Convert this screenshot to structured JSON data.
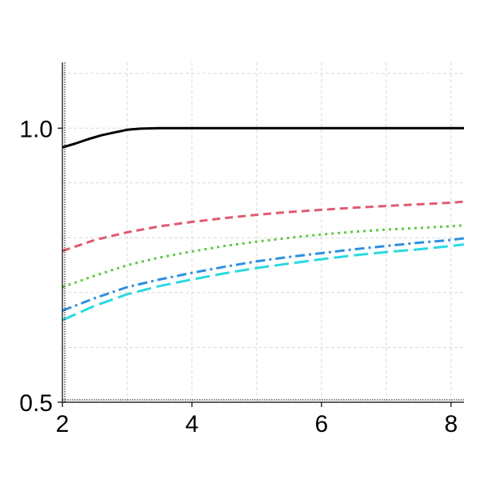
{
  "chart_data": {
    "type": "line",
    "title": "",
    "xlabel": "",
    "ylabel": "",
    "xlim": [
      2,
      8.2
    ],
    "ylim": [
      0.5,
      1.12
    ],
    "x_ticks": [
      2,
      4,
      6,
      8
    ],
    "x_tick_labels": [
      "2",
      "4",
      "6",
      "8"
    ],
    "x_minor_grid": [
      3,
      5,
      7
    ],
    "y_ticks": [
      0.5,
      1.0
    ],
    "y_tick_labels": [
      "0.5",
      "1.0"
    ],
    "y_minor_grid": [
      0.6,
      0.7,
      0.8,
      0.9,
      1.1
    ],
    "grid": true,
    "legend": "none",
    "series": [
      {
        "color": "#000000",
        "dash": "solid",
        "x": [
          2,
          2.2,
          2.4,
          2.6,
          2.8,
          3,
          3.2,
          3.5,
          4,
          5,
          6,
          7,
          8,
          8.2
        ],
        "y": [
          0.965,
          0.972,
          0.98,
          0.987,
          0.992,
          0.997,
          0.999,
          1.0,
          1.0,
          1.0,
          1.0,
          1.0,
          1.0,
          1.0
        ]
      },
      {
        "color": "#e05a70",
        "dash": "dashed",
        "x": [
          2,
          2.5,
          3,
          3.5,
          4,
          4.5,
          5,
          5.5,
          6,
          6.5,
          7,
          7.5,
          8,
          8.2
        ],
        "y": [
          0.776,
          0.796,
          0.81,
          0.821,
          0.829,
          0.836,
          0.842,
          0.847,
          0.851,
          0.855,
          0.858,
          0.861,
          0.864,
          0.866
        ]
      },
      {
        "color": "#5fc845",
        "dash": "dotted",
        "x": [
          2,
          2.5,
          3,
          3.5,
          4,
          4.5,
          5,
          5.5,
          6,
          6.5,
          7,
          7.5,
          8,
          8.2
        ],
        "y": [
          0.71,
          0.731,
          0.75,
          0.764,
          0.775,
          0.785,
          0.793,
          0.8,
          0.806,
          0.811,
          0.815,
          0.818,
          0.821,
          0.823
        ]
      },
      {
        "color": "#2d8fe0",
        "dash": "dashdot",
        "x": [
          2,
          2.5,
          3,
          3.5,
          4,
          4.5,
          5,
          5.5,
          6,
          6.5,
          7,
          7.5,
          8,
          8.2
        ],
        "y": [
          0.667,
          0.69,
          0.71,
          0.724,
          0.736,
          0.747,
          0.757,
          0.765,
          0.772,
          0.779,
          0.785,
          0.791,
          0.796,
          0.799
        ]
      },
      {
        "color": "#2ad9e0",
        "dash": "longdash",
        "x": [
          2,
          2.5,
          3,
          3.5,
          4,
          4.5,
          5,
          5.5,
          6,
          6.5,
          7,
          7.5,
          8,
          8.2
        ],
        "y": [
          0.65,
          0.676,
          0.697,
          0.712,
          0.724,
          0.735,
          0.745,
          0.753,
          0.761,
          0.768,
          0.774,
          0.779,
          0.785,
          0.788
        ]
      }
    ]
  }
}
